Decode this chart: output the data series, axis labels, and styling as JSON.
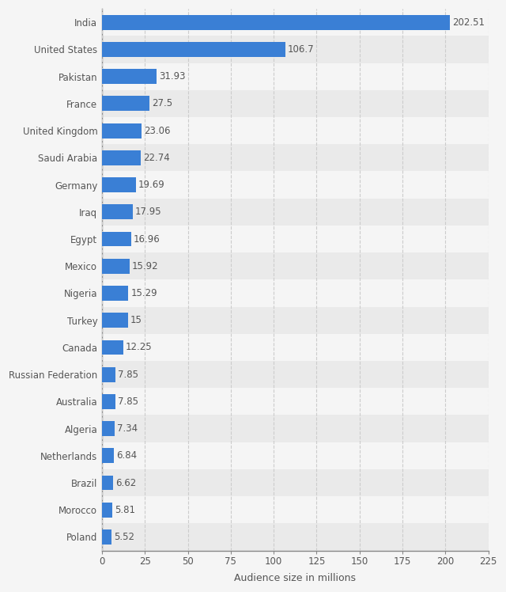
{
  "countries": [
    "Poland",
    "Morocco",
    "Brazil",
    "Netherlands",
    "Algeria",
    "Australia",
    "Russian Federation",
    "Canada",
    "Turkey",
    "Nigeria",
    "Mexico",
    "Egypt",
    "Iraq",
    "Germany",
    "Saudi Arabia",
    "United Kingdom",
    "France",
    "Pakistan",
    "United States",
    "India"
  ],
  "values": [
    5.52,
    5.81,
    6.62,
    6.84,
    7.34,
    7.85,
    7.85,
    12.25,
    15,
    15.29,
    15.92,
    16.96,
    17.95,
    19.69,
    22.74,
    23.06,
    27.5,
    31.93,
    106.7,
    202.51
  ],
  "bar_color": "#3a7fd5",
  "bg_color_odd": "#eaeaea",
  "bg_color_even": "#f5f5f5",
  "grid_color": "#cccccc",
  "xlabel": "Audience size in millions",
  "xlim": [
    0,
    225
  ],
  "xticks": [
    0,
    25,
    50,
    75,
    100,
    125,
    150,
    175,
    200,
    225
  ],
  "label_fontsize": 8.5,
  "tick_fontsize": 8.5,
  "xlabel_fontsize": 9,
  "bar_height": 0.55,
  "value_label_color": "#555555",
  "ytick_color": "#555555"
}
